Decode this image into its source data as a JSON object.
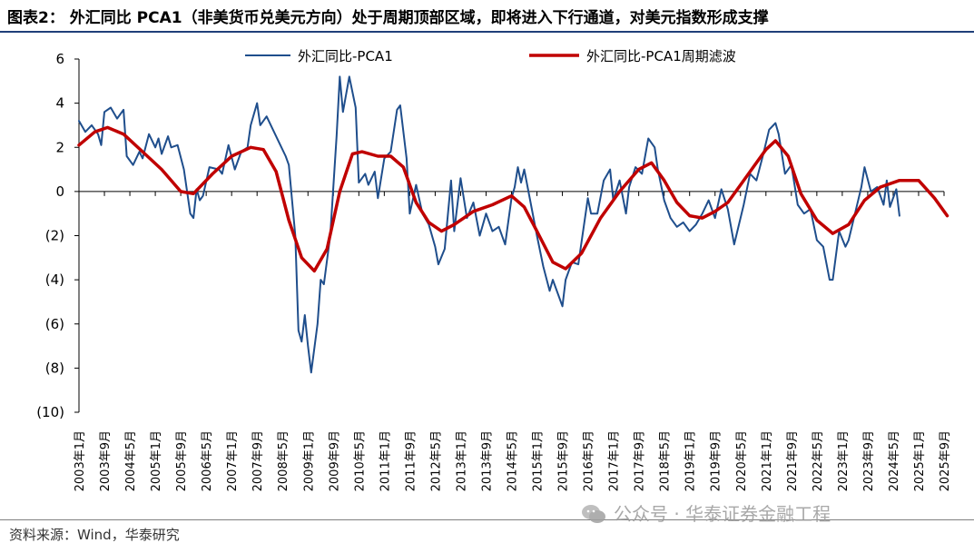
{
  "header": {
    "title": "图表2： 外汇同比 PCA1（非美货币兑美元方向）处于周期顶部区域，即将进入下行通道，对美元指数形成支撑"
  },
  "footer": {
    "source": "资料来源：Wind，华泰研究",
    "watermark": "公众号 · 华泰证券金融工程",
    "watermark_icon": "wechat-icon"
  },
  "colors": {
    "series_raw": "#1f4e8c",
    "series_filtered": "#c00000",
    "rule": "#1f3f79"
  },
  "chart_data": {
    "type": "line",
    "title": "图表2： 外汇同比 PCA1（非美货币兑美元方向）处于周期顶部区域，即将进入下行通道，对美元指数形成支撑",
    "xlabel": "",
    "ylabel": "",
    "ylim": [
      -10,
      6
    ],
    "grid": false,
    "legend_position": "top",
    "yticks": [
      6,
      4,
      2,
      0,
      -2,
      -4,
      -6,
      -8,
      -10
    ],
    "ytick_labels": [
      "6",
      "4",
      "2",
      "0",
      "(2)",
      "(4)",
      "(6)",
      "(8)",
      "(10)"
    ],
    "xticks": [
      "2003年1月",
      "2003年9月",
      "2004年5月",
      "2005年1月",
      "2005年9月",
      "2006年5月",
      "2007年1月",
      "2007年9月",
      "2008年5月",
      "2009年1月",
      "2009年9月",
      "2010年5月",
      "2011年1月",
      "2011年9月",
      "2012年5月",
      "2013年1月",
      "2013年9月",
      "2014年5月",
      "2015年1月",
      "2015年9月",
      "2016年5月",
      "2017年1月",
      "2017年9月",
      "2018年5月",
      "2019年1月",
      "2019年9月",
      "2020年5月",
      "2021年1月",
      "2021年9月",
      "2022年5月",
      "2023年1月",
      "2023年9月",
      "2024年5月",
      "2025年1月",
      "2025年9月"
    ],
    "series": [
      {
        "name": "外汇同比-PCA1",
        "color": "#1f4e8c",
        "points": [
          [
            "2003-01",
            3.2
          ],
          [
            "2003-03",
            2.7
          ],
          [
            "2003-05",
            3.0
          ],
          [
            "2003-07",
            2.6
          ],
          [
            "2003-08",
            2.1
          ],
          [
            "2003-09",
            3.6
          ],
          [
            "2003-11",
            3.8
          ],
          [
            "2004-01",
            3.3
          ],
          [
            "2004-03",
            3.7
          ],
          [
            "2004-04",
            1.6
          ],
          [
            "2004-06",
            1.2
          ],
          [
            "2004-08",
            1.8
          ],
          [
            "2004-09",
            1.5
          ],
          [
            "2004-11",
            2.6
          ],
          [
            "2005-01",
            2.0
          ],
          [
            "2005-02",
            2.4
          ],
          [
            "2005-03",
            1.7
          ],
          [
            "2005-05",
            2.5
          ],
          [
            "2005-06",
            2.0
          ],
          [
            "2005-08",
            2.1
          ],
          [
            "2005-10",
            1.0
          ],
          [
            "2005-12",
            -1.0
          ],
          [
            "2006-01",
            -1.2
          ],
          [
            "2006-02",
            0.1
          ],
          [
            "2006-03",
            -0.4
          ],
          [
            "2006-04",
            -0.2
          ],
          [
            "2006-06",
            1.1
          ],
          [
            "2006-09",
            1.0
          ],
          [
            "2006-10",
            0.8
          ],
          [
            "2006-12",
            2.1
          ],
          [
            "2007-02",
            1.0
          ],
          [
            "2007-04",
            1.8
          ],
          [
            "2007-06",
            2.0
          ],
          [
            "2007-07",
            3.0
          ],
          [
            "2007-09",
            4.0
          ],
          [
            "2007-10",
            3.0
          ],
          [
            "2007-12",
            3.4
          ],
          [
            "2008-02",
            2.8
          ],
          [
            "2008-04",
            2.2
          ],
          [
            "2008-06",
            1.6
          ],
          [
            "2008-07",
            1.2
          ],
          [
            "2008-09",
            -2.0
          ],
          [
            "2008-10",
            -6.3
          ],
          [
            "2008-11",
            -6.8
          ],
          [
            "2008-12",
            -5.6
          ],
          [
            "2009-01",
            -7.0
          ],
          [
            "2009-02",
            -8.2
          ],
          [
            "2009-04",
            -6.0
          ],
          [
            "2009-05",
            -4.0
          ],
          [
            "2009-06",
            -4.2
          ],
          [
            "2009-08",
            -2.0
          ],
          [
            "2009-10",
            2.5
          ],
          [
            "2009-11",
            5.2
          ],
          [
            "2009-12",
            3.6
          ],
          [
            "2010-02",
            5.2
          ],
          [
            "2010-04",
            3.8
          ],
          [
            "2010-05",
            0.4
          ],
          [
            "2010-07",
            0.8
          ],
          [
            "2010-08",
            0.3
          ],
          [
            "2010-10",
            0.9
          ],
          [
            "2010-11",
            -0.3
          ],
          [
            "2011-01",
            1.5
          ],
          [
            "2011-03",
            1.8
          ],
          [
            "2011-05",
            3.7
          ],
          [
            "2011-06",
            3.9
          ],
          [
            "2011-08",
            1.5
          ],
          [
            "2011-09",
            -1.0
          ],
          [
            "2011-11",
            0.3
          ],
          [
            "2012-01",
            -1.0
          ],
          [
            "2012-03",
            -1.5
          ],
          [
            "2012-05",
            -2.5
          ],
          [
            "2012-06",
            -3.3
          ],
          [
            "2012-08",
            -2.6
          ],
          [
            "2012-10",
            0.5
          ],
          [
            "2012-11",
            -1.8
          ],
          [
            "2013-01",
            0.6
          ],
          [
            "2013-03",
            -1.2
          ],
          [
            "2013-05",
            -0.5
          ],
          [
            "2013-07",
            -2.0
          ],
          [
            "2013-09",
            -1.0
          ],
          [
            "2013-11",
            -1.8
          ],
          [
            "2014-01",
            -1.6
          ],
          [
            "2014-03",
            -2.4
          ],
          [
            "2014-05",
            -0.3
          ],
          [
            "2014-06",
            0.2
          ],
          [
            "2014-07",
            1.1
          ],
          [
            "2014-08",
            0.4
          ],
          [
            "2014-09",
            1.0
          ],
          [
            "2014-11",
            -0.5
          ],
          [
            "2015-01",
            -2.0
          ],
          [
            "2015-03",
            -3.4
          ],
          [
            "2015-05",
            -4.5
          ],
          [
            "2015-06",
            -4.0
          ],
          [
            "2015-08",
            -4.8
          ],
          [
            "2015-09",
            -5.2
          ],
          [
            "2015-10",
            -4.0
          ],
          [
            "2015-12",
            -3.2
          ],
          [
            "2016-02",
            -3.3
          ],
          [
            "2016-03",
            -2.3
          ],
          [
            "2016-05",
            -0.3
          ],
          [
            "2016-06",
            -1.0
          ],
          [
            "2016-08",
            -1.0
          ],
          [
            "2016-10",
            0.5
          ],
          [
            "2016-12",
            1.0
          ],
          [
            "2017-01",
            -0.4
          ],
          [
            "2017-03",
            0.5
          ],
          [
            "2017-05",
            -1.0
          ],
          [
            "2017-06",
            0.2
          ],
          [
            "2017-08",
            1.1
          ],
          [
            "2017-10",
            0.8
          ],
          [
            "2017-12",
            2.4
          ],
          [
            "2018-02",
            2.0
          ],
          [
            "2018-03",
            1.0
          ],
          [
            "2018-05",
            -0.4
          ],
          [
            "2018-07",
            -1.2
          ],
          [
            "2018-09",
            -1.6
          ],
          [
            "2018-11",
            -1.4
          ],
          [
            "2019-01",
            -1.8
          ],
          [
            "2019-03",
            -1.5
          ],
          [
            "2019-05",
            -1.0
          ],
          [
            "2019-07",
            -0.4
          ],
          [
            "2019-09",
            -1.2
          ],
          [
            "2019-11",
            0.1
          ],
          [
            "2020-01",
            -0.8
          ],
          [
            "2020-03",
            -2.4
          ],
          [
            "2020-04",
            -1.8
          ],
          [
            "2020-06",
            -0.6
          ],
          [
            "2020-08",
            0.8
          ],
          [
            "2020-10",
            0.5
          ],
          [
            "2020-12",
            1.6
          ],
          [
            "2021-02",
            2.8
          ],
          [
            "2021-04",
            3.1
          ],
          [
            "2021-05",
            2.6
          ],
          [
            "2021-07",
            0.8
          ],
          [
            "2021-09",
            1.2
          ],
          [
            "2021-11",
            -0.6
          ],
          [
            "2022-01",
            -1.0
          ],
          [
            "2022-03",
            -0.8
          ],
          [
            "2022-05",
            -2.2
          ],
          [
            "2022-07",
            -2.5
          ],
          [
            "2022-09",
            -4.0
          ],
          [
            "2022-10",
            -4.0
          ],
          [
            "2022-12",
            -1.8
          ],
          [
            "2023-02",
            -2.5
          ],
          [
            "2023-03",
            -2.2
          ],
          [
            "2023-05",
            -1.0
          ],
          [
            "2023-07",
            0.2
          ],
          [
            "2023-08",
            1.1
          ],
          [
            "2023-10",
            0.0
          ],
          [
            "2023-12",
            0.2
          ],
          [
            "2024-02",
            -0.6
          ],
          [
            "2024-03",
            0.5
          ],
          [
            "2024-04",
            -0.7
          ],
          [
            "2024-06",
            0.1
          ],
          [
            "2024-07",
            -1.1
          ]
        ]
      },
      {
        "name": "外汇同比-PCA1周期滤波",
        "color": "#c00000",
        "points": [
          [
            "2003-01",
            2.1
          ],
          [
            "2003-06",
            2.7
          ],
          [
            "2003-10",
            2.9
          ],
          [
            "2004-03",
            2.6
          ],
          [
            "2004-09",
            1.8
          ],
          [
            "2005-03",
            1.0
          ],
          [
            "2005-09",
            0.0
          ],
          [
            "2006-01",
            -0.1
          ],
          [
            "2006-07",
            0.8
          ],
          [
            "2007-01",
            1.6
          ],
          [
            "2007-07",
            2.0
          ],
          [
            "2007-11",
            1.9
          ],
          [
            "2008-03",
            0.9
          ],
          [
            "2008-07",
            -1.3
          ],
          [
            "2008-11",
            -3.0
          ],
          [
            "2009-03",
            -3.6
          ],
          [
            "2009-07",
            -2.6
          ],
          [
            "2009-11",
            0.0
          ],
          [
            "2010-03",
            1.7
          ],
          [
            "2010-06",
            1.8
          ],
          [
            "2010-11",
            1.6
          ],
          [
            "2011-03",
            1.6
          ],
          [
            "2011-07",
            1.1
          ],
          [
            "2011-11",
            -0.5
          ],
          [
            "2012-03",
            -1.4
          ],
          [
            "2012-07",
            -1.8
          ],
          [
            "2012-11",
            -1.5
          ],
          [
            "2013-05",
            -0.9
          ],
          [
            "2013-11",
            -0.6
          ],
          [
            "2014-05",
            -0.2
          ],
          [
            "2014-09",
            -0.7
          ],
          [
            "2015-01",
            -1.8
          ],
          [
            "2015-06",
            -3.2
          ],
          [
            "2015-10",
            -3.5
          ],
          [
            "2016-03",
            -2.8
          ],
          [
            "2016-09",
            -1.2
          ],
          [
            "2017-03",
            0.0
          ],
          [
            "2017-09",
            1.0
          ],
          [
            "2018-01",
            1.3
          ],
          [
            "2018-05",
            0.5
          ],
          [
            "2018-09",
            -0.5
          ],
          [
            "2019-01",
            -1.1
          ],
          [
            "2019-05",
            -1.2
          ],
          [
            "2019-09",
            -0.9
          ],
          [
            "2020-01",
            -0.5
          ],
          [
            "2020-05",
            0.3
          ],
          [
            "2020-09",
            1.1
          ],
          [
            "2021-01",
            1.9
          ],
          [
            "2021-04",
            2.3
          ],
          [
            "2021-08",
            1.6
          ],
          [
            "2021-12",
            -0.1
          ],
          [
            "2022-05",
            -1.3
          ],
          [
            "2022-10",
            -1.9
          ],
          [
            "2023-03",
            -1.5
          ],
          [
            "2023-08",
            -0.4
          ],
          [
            "2024-01",
            0.2
          ],
          [
            "2024-07",
            0.5
          ],
          [
            "2025-01",
            0.5
          ],
          [
            "2025-06",
            -0.3
          ],
          [
            "2025-10",
            -1.1
          ]
        ]
      }
    ]
  }
}
